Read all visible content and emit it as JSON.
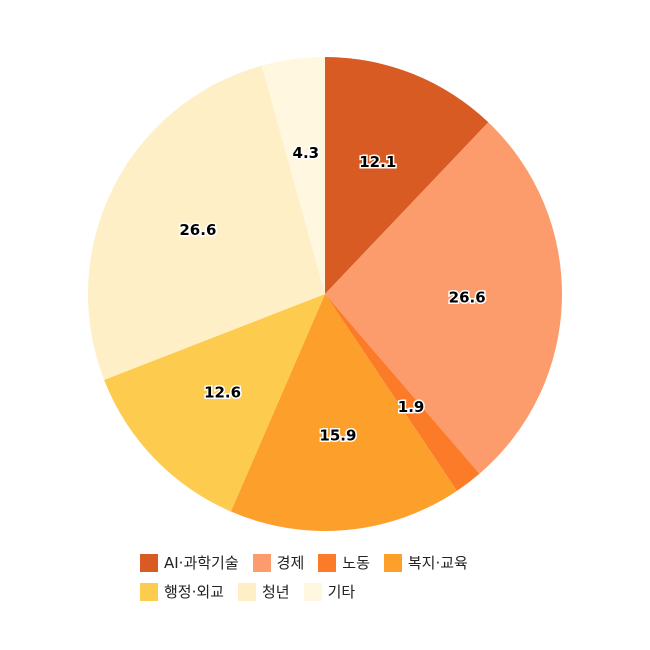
{
  "chart_data": {
    "type": "pie",
    "title": "",
    "legend_position": "bottom",
    "slices": [
      {
        "label": "AI·과학기술",
        "value": 12.1,
        "color": "#d95b24"
      },
      {
        "label": "경제",
        "value": 26.6,
        "color": "#fc9b6c"
      },
      {
        "label": "노동",
        "value": 1.9,
        "color": "#fc7b28"
      },
      {
        "label": "복지·교육",
        "value": 15.9,
        "color": "#fda02b"
      },
      {
        "label": "행정·외교",
        "value": 12.6,
        "color": "#fdcb4d"
      },
      {
        "label": "청년",
        "value": 26.6,
        "color": "#feefc6"
      },
      {
        "label": "기타",
        "value": 4.3,
        "color": "#fff7df"
      }
    ]
  }
}
